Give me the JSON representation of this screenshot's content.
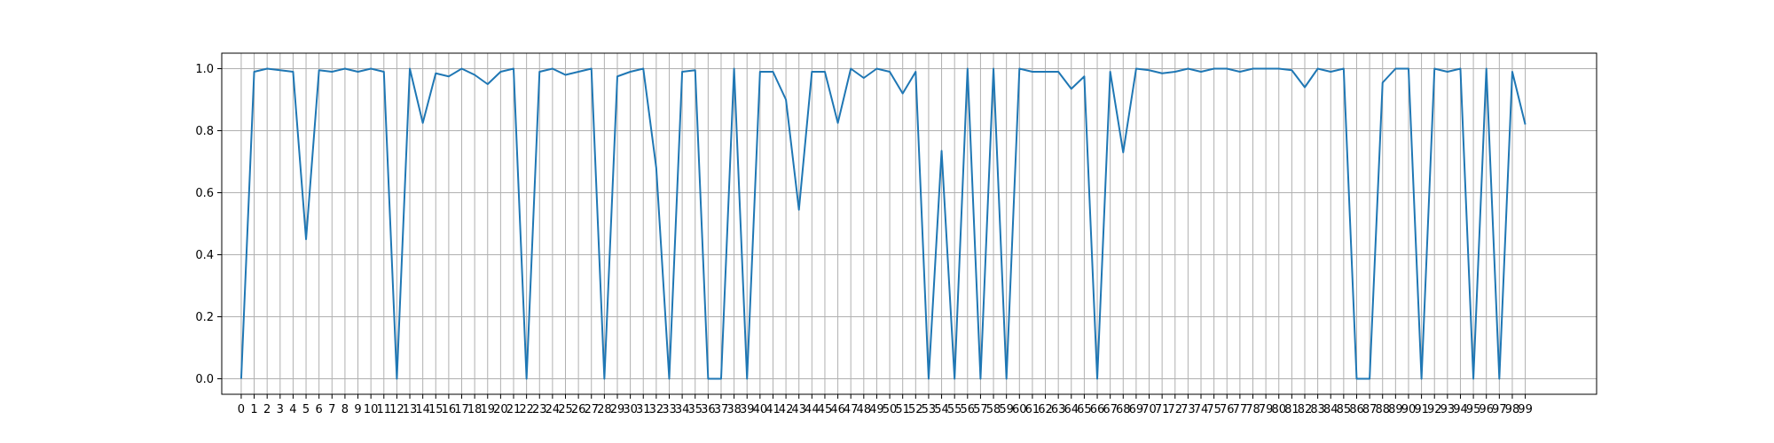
{
  "chart_data": {
    "type": "line",
    "x": [
      0,
      1,
      2,
      3,
      4,
      5,
      6,
      7,
      8,
      9,
      10,
      11,
      12,
      13,
      14,
      15,
      16,
      17,
      18,
      19,
      20,
      21,
      22,
      23,
      24,
      25,
      26,
      27,
      28,
      29,
      30,
      31,
      32,
      33,
      34,
      35,
      36,
      37,
      38,
      39,
      40,
      41,
      42,
      43,
      44,
      45,
      46,
      47,
      48,
      49,
      50,
      51,
      52,
      53,
      54,
      55,
      56,
      57,
      58,
      59,
      60,
      61,
      62,
      63,
      64,
      65,
      66,
      67,
      68,
      69,
      70,
      71,
      72,
      73,
      74,
      75,
      76,
      77,
      78,
      79,
      80,
      81,
      82,
      83,
      84,
      85,
      86,
      87,
      88,
      89,
      90,
      91,
      92,
      93,
      94,
      95,
      96,
      97,
      98,
      99
    ],
    "series": [
      {
        "values": [
          0.0,
          0.99,
          1.0,
          0.995,
          0.99,
          0.45,
          0.995,
          0.99,
          1.0,
          0.99,
          1.0,
          0.99,
          0.0,
          1.0,
          0.825,
          0.985,
          0.975,
          1.0,
          0.98,
          0.95,
          0.99,
          1.0,
          0.0,
          0.99,
          1.0,
          0.98,
          0.99,
          1.0,
          0.0,
          0.975,
          0.99,
          1.0,
          0.68,
          0.0,
          0.99,
          0.995,
          0.0,
          0.0,
          1.0,
          0.0,
          0.99,
          0.99,
          0.9,
          0.545,
          0.99,
          0.99,
          0.825,
          1.0,
          0.97,
          1.0,
          0.99,
          0.92,
          0.99,
          0.0,
          0.735,
          0.0,
          1.0,
          0.0,
          1.0,
          0.0,
          1.0,
          0.99,
          0.99,
          0.99,
          0.935,
          0.975,
          0.0,
          0.99,
          0.73,
          1.0,
          0.995,
          0.985,
          0.99,
          1.0,
          0.99,
          1.0,
          1.0,
          0.99,
          1.0,
          1.0,
          1.0,
          0.995,
          0.94,
          1.0,
          0.99,
          1.0,
          0.0,
          0.0,
          0.955,
          1.0,
          1.0,
          0.0,
          1.0,
          0.99,
          1.0,
          0.0,
          1.0,
          0.0,
          0.99,
          0.82
        ]
      }
    ],
    "xlim": [
      -1.5,
      104.5
    ],
    "ylim": [
      -0.05,
      1.05
    ],
    "yticks": [
      0.0,
      0.2,
      0.4,
      0.6,
      0.8,
      1.0
    ],
    "ytick_labels": [
      "0.0",
      "0.2",
      "0.4",
      "0.6",
      "0.8",
      "1.0"
    ],
    "xtick_labels": [
      "0",
      "1",
      "2",
      "3",
      "4",
      "5",
      "6",
      "7",
      "8",
      "9",
      "10",
      "11",
      "12",
      "13",
      "14",
      "15",
      "16",
      "17",
      "18",
      "19",
      "20",
      "21",
      "22",
      "23",
      "24",
      "25",
      "26",
      "27",
      "28",
      "29",
      "30",
      "31",
      "32",
      "33",
      "34",
      "35",
      "36",
      "37",
      "38",
      "39",
      "40",
      "41",
      "42",
      "43",
      "44",
      "45",
      "46",
      "47",
      "48",
      "49",
      "50",
      "51",
      "52",
      "53",
      "54",
      "55",
      "56",
      "57",
      "58",
      "59",
      "60",
      "61",
      "62",
      "63",
      "64",
      "65",
      "66",
      "67",
      "68",
      "69",
      "70",
      "71",
      "72",
      "73",
      "74",
      "75",
      "76",
      "77",
      "78",
      "79",
      "80",
      "81",
      "82",
      "83",
      "84",
      "85",
      "86",
      "87",
      "88",
      "89",
      "90",
      "91",
      "92",
      "93",
      "94",
      "95",
      "96",
      "97",
      "98",
      "99"
    ],
    "grid": true,
    "line_color": "#1f77b4",
    "grid_color": "#b0b0b0",
    "axis_color": "#000000"
  }
}
